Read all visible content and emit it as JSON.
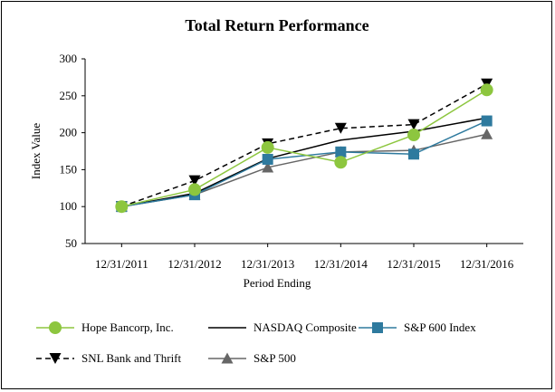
{
  "chart_data": {
    "type": "line",
    "title": "Total Return Performance",
    "xlabel": "Period Ending",
    "ylabel": "Index Value",
    "ylim": [
      50,
      300
    ],
    "yticks": [
      "50",
      "100",
      "150",
      "200",
      "250",
      "300"
    ],
    "categories": [
      "12/31/2011",
      "12/31/2012",
      "12/31/2013",
      "12/31/2014",
      "12/31/2015",
      "12/31/2016"
    ],
    "legend_position": "bottom",
    "series": [
      {
        "name": "Hope Bancorp, Inc.",
        "color": "#8dc63f",
        "dash": false,
        "marker": "circle",
        "values": [
          100,
          123,
          180,
          160,
          197,
          258
        ]
      },
      {
        "name": "NASDAQ Composite",
        "color": "#000000",
        "dash": false,
        "marker": "none",
        "values": [
          100,
          118,
          165,
          190,
          202,
          220
        ]
      },
      {
        "name": "S&P 600 Index",
        "color": "#2e7a9e",
        "dash": true,
        "marker": "square",
        "values": [
          100,
          116,
          164,
          174,
          171,
          216
        ]
      },
      {
        "name": "SNL Bank and Thrift",
        "color": "#000000",
        "dash": true,
        "marker": "triangle-down",
        "values": [
          100,
          135,
          185,
          206,
          211,
          266
        ]
      },
      {
        "name": "S&P 500",
        "color": "#666666",
        "dash": false,
        "marker": "triangle-up",
        "values": [
          100,
          116,
          153,
          174,
          176,
          198
        ]
      }
    ]
  }
}
